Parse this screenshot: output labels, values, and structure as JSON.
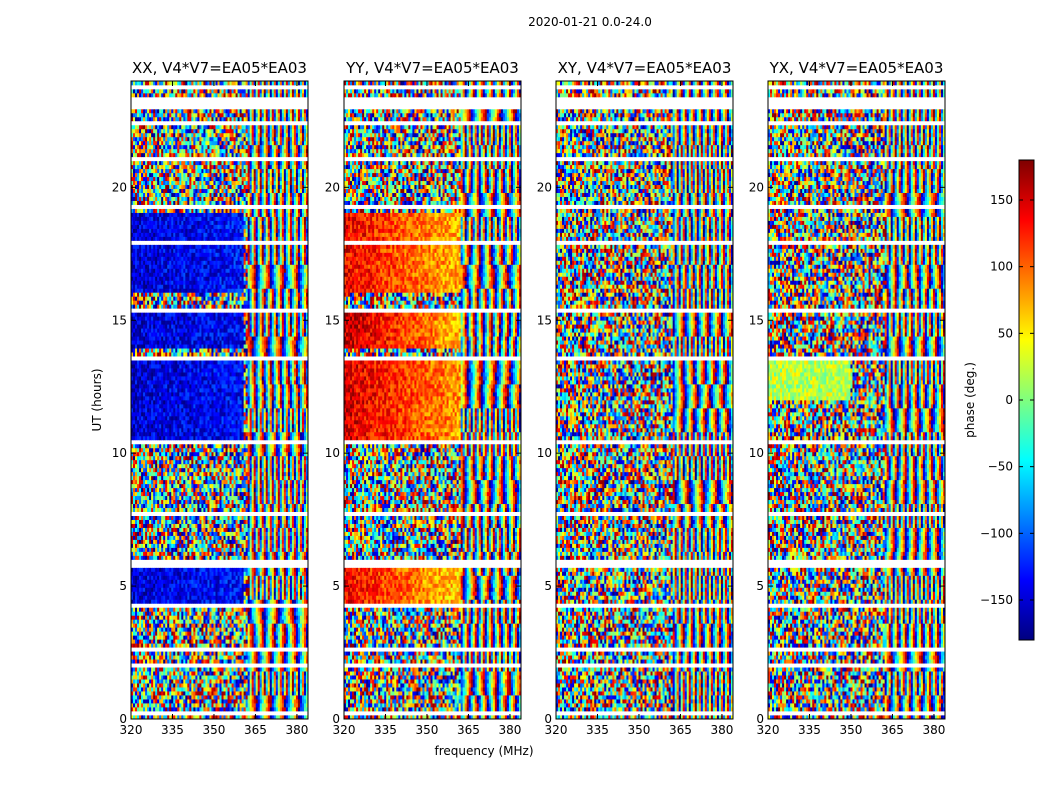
{
  "chart_data": {
    "type": "heatmap",
    "suptitle": "2020-01-21 0.0-24.0",
    "xlabel": "frequency (MHz)",
    "ylabel": "UT (hours)",
    "xlim": [
      320,
      384
    ],
    "ylim": [
      0,
      24
    ],
    "xticks": [
      320,
      335,
      350,
      365,
      380
    ],
    "yticks": [
      0,
      5,
      10,
      15,
      20
    ],
    "colorbar": {
      "label": "phase (deg.)",
      "range": [
        -180,
        180
      ],
      "ticks": [
        -150,
        -100,
        -50,
        0,
        50,
        100,
        150
      ],
      "colormap": [
        "#00007f",
        "#0000ff",
        "#007fff",
        "#00ffff",
        "#7fff7f",
        "#ffff00",
        "#ff7f00",
        "#ff0000",
        "#7f0000"
      ]
    },
    "flagged_time_ranges": [
      [
        0.2,
        0.3
      ],
      [
        1.95,
        2.05
      ],
      [
        2.35,
        2.45
      ],
      [
        2.55,
        2.7
      ],
      [
        4.2,
        4.3
      ],
      [
        5.75,
        6.0
      ],
      [
        7.65,
        7.8
      ],
      [
        10.3,
        10.45
      ],
      [
        11.95,
        12.05
      ],
      [
        13.55,
        13.65
      ],
      [
        15.25,
        15.4
      ],
      [
        16.0,
        16.1
      ],
      [
        17.8,
        17.95
      ],
      [
        18.4,
        18.5
      ],
      [
        19.2,
        19.3
      ],
      [
        21.0,
        21.1
      ],
      [
        22.3,
        22.45
      ],
      [
        23.0,
        23.35
      ],
      [
        23.7,
        23.8
      ]
    ],
    "panels": [
      {
        "title": "XX, V4*V7=EA05*EA03",
        "coherent_segments": [
          {
            "t_start": 4.3,
            "t_end": 5.75,
            "f_end": 361,
            "phase_start": -150,
            "phase_end": -130
          },
          {
            "t_start": 10.5,
            "t_end": 13.5,
            "f_end": 361,
            "phase_start": -150,
            "phase_end": -135
          },
          {
            "t_start": 14.0,
            "t_end": 15.25,
            "f_end": 361,
            "phase_start": -150,
            "phase_end": -135
          },
          {
            "t_start": 16.1,
            "t_end": 19.0,
            "f_end": 361,
            "phase_start": -150,
            "phase_end": -130
          }
        ]
      },
      {
        "title": "YY, V4*V7=EA05*EA03",
        "coherent_segments": [
          {
            "t_start": 4.3,
            "t_end": 5.75,
            "f_end": 362,
            "phase_start": 140,
            "phase_end": 60
          },
          {
            "t_start": 10.5,
            "t_end": 13.5,
            "f_end": 362,
            "phase_start": 150,
            "phase_end": 80
          },
          {
            "t_start": 14.0,
            "t_end": 15.25,
            "f_end": 362,
            "phase_start": 160,
            "phase_end": 70
          },
          {
            "t_start": 16.1,
            "t_end": 19.0,
            "f_end": 362,
            "phase_start": 140,
            "phase_end": 70
          }
        ]
      },
      {
        "title": "XY, V4*V7=EA05*EA03",
        "coherent_segments": []
      },
      {
        "title": "YX, V4*V7=EA05*EA03",
        "coherent_segments": [
          {
            "t_start": 12.0,
            "t_end": 13.5,
            "f_end": 350,
            "phase_start": 20,
            "phase_end": 20
          }
        ]
      }
    ]
  }
}
